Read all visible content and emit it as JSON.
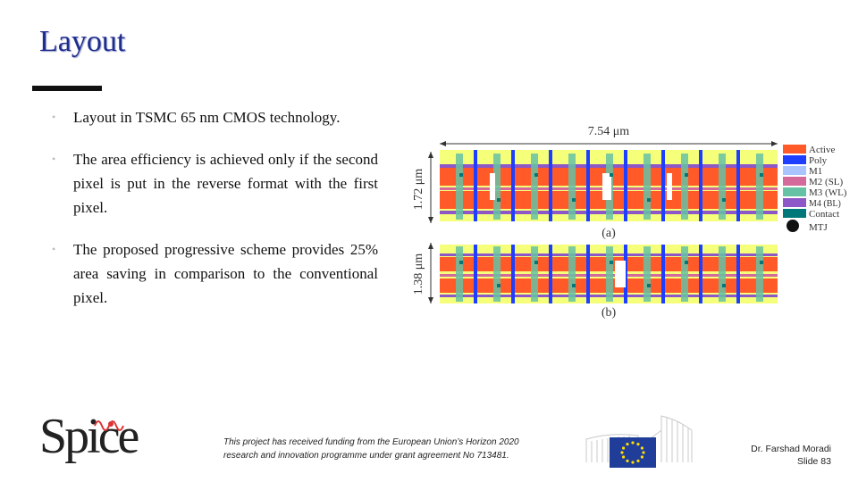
{
  "slide": {
    "title": "Layout",
    "bullets": [
      "Layout in TSMC 65 nm CMOS technology.",
      "The area efficiency is achieved only if the second pixel is put in the reverse format with the first pixel.",
      "The proposed progressive scheme provides 25% area saving in comparison to the conventional pixel."
    ]
  },
  "figure": {
    "width_label": "7.54 μm",
    "height_a_label": "1.72 μm",
    "height_b_label": "1.38 μm",
    "caption_a": "(a)",
    "caption_b": "(b)",
    "legend": [
      {
        "label": "Active",
        "color": "#ff5a28"
      },
      {
        "label": "Poly",
        "color": "#1e3fff"
      },
      {
        "label": "M1",
        "color": "#a9c4ff"
      },
      {
        "label": "M2 (SL)",
        "color": "#d46a9b"
      },
      {
        "label": "M3 (WL)",
        "color": "#66c2a5"
      },
      {
        "label": "M4 (BL)",
        "color": "#8e57c7"
      },
      {
        "label": "Contact",
        "color": "#00787a"
      },
      {
        "label": "MTJ",
        "color": "#111111"
      }
    ]
  },
  "footer": {
    "logo_text": "Spice",
    "funding_line1": "This project has received funding from the European Union’s Horizon 2020",
    "funding_line2": "research and innovation programme under grant agreement No 713481.",
    "author": "Dr. Farshad Moradi",
    "slide_number": "Slide 83"
  }
}
